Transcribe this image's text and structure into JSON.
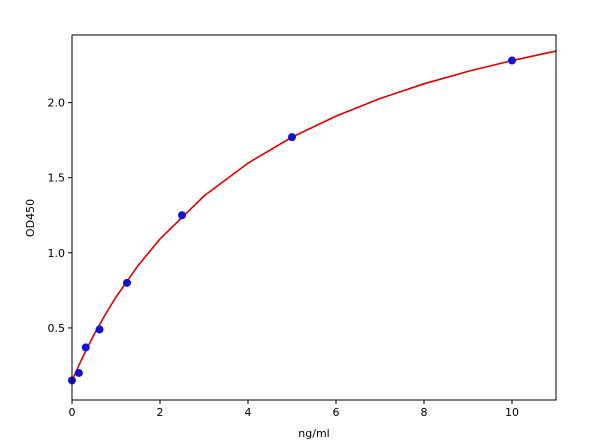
{
  "chart_data": {
    "type": "scatter",
    "x_label": "ng/ml",
    "y_label": "OD450",
    "xlim": [
      0,
      11
    ],
    "ylim": [
      0.02,
      2.45
    ],
    "xticks": [
      0,
      2,
      4,
      6,
      8,
      10
    ],
    "yticks": [
      0.5,
      {
        "value": 1.0,
        "label": "1.0"
      },
      1.5,
      {
        "value": 2.0,
        "label": "2.0"
      }
    ],
    "grid": false,
    "series": [
      {
        "mode": "line",
        "color": "#e00000",
        "x": [
          0,
          0.25,
          0.5,
          0.75,
          1,
          1.5,
          2,
          3,
          4,
          5,
          6,
          7,
          8,
          9,
          10,
          11
        ],
        "values": [
          0.15,
          0.31,
          0.455,
          0.586,
          0.705,
          0.915,
          1.092,
          1.378,
          1.597,
          1.77,
          1.91,
          2.027,
          2.125,
          2.208,
          2.28,
          2.343
        ]
      },
      {
        "mode": "markers",
        "color": "#1010d0",
        "x": [
          0,
          0.156,
          0.3125,
          0.625,
          1.25,
          2.5,
          5,
          10
        ],
        "values": [
          0.15,
          0.2,
          0.37,
          0.49,
          0.8,
          1.25,
          1.77,
          2.28
        ]
      }
    ]
  }
}
